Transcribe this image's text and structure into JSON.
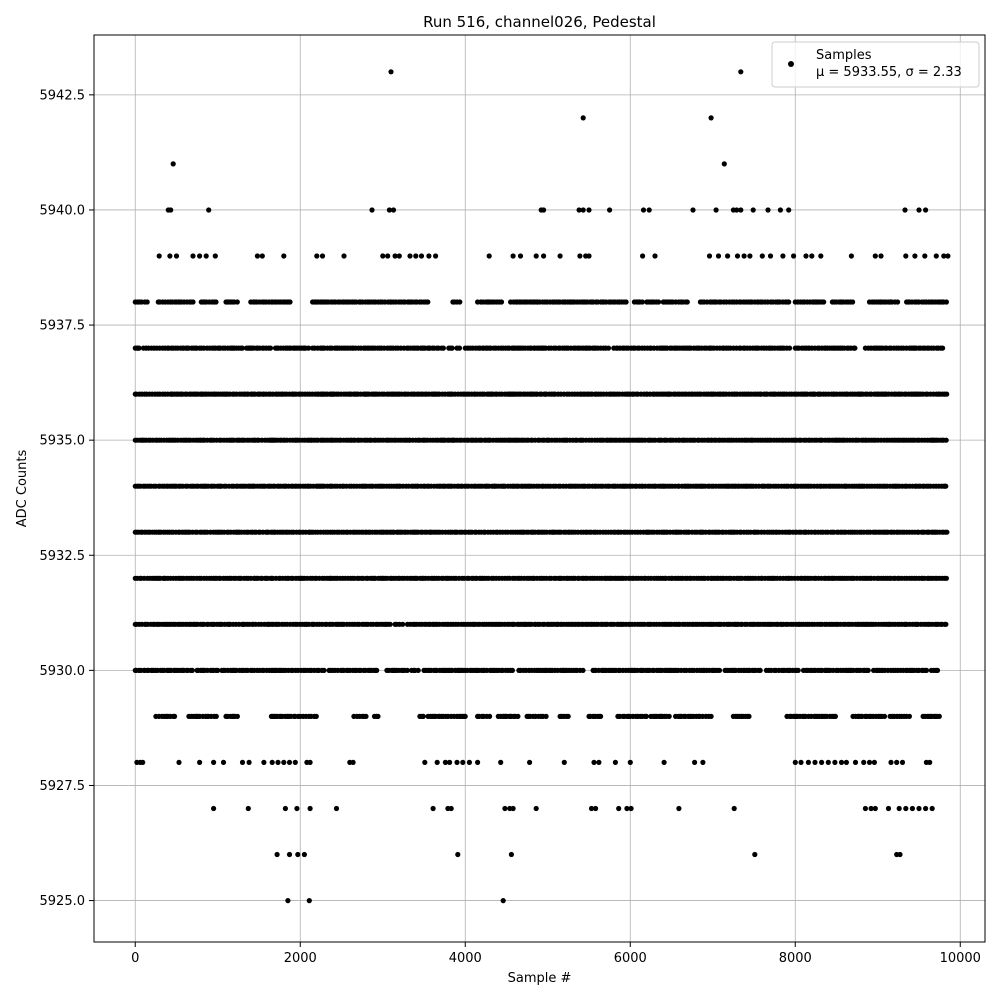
{
  "chart_data": {
    "type": "scatter",
    "title": "Run 516, channel026, Pedestal",
    "xlabel": "Sample #",
    "ylabel": "ADC Counts",
    "xlim": [
      -500,
      10300
    ],
    "ylim": [
      5924.1,
      5943.8
    ],
    "x_ticks": [
      0,
      2000,
      4000,
      6000,
      8000,
      10000
    ],
    "y_ticks": [
      5925.0,
      5927.5,
      5930.0,
      5932.5,
      5935.0,
      5937.5,
      5940.0,
      5942.5
    ],
    "grid": true,
    "legend": {
      "position": "top-right",
      "series_name": "Samples",
      "stats_text": "μ = 5933.55, σ = 2.33"
    },
    "marker_color": "#000000",
    "series": [
      {
        "name": "Samples",
        "points": [
          [
            3100,
            5943
          ],
          [
            7340,
            5943
          ],
          [
            5430,
            5942
          ],
          [
            6980,
            5942
          ],
          [
            460,
            5941
          ],
          [
            7140,
            5941
          ],
          [
            400,
            5940
          ],
          [
            430,
            5940
          ],
          [
            890,
            5940
          ],
          [
            2870,
            5940
          ],
          [
            3080,
            5940
          ],
          [
            3130,
            5940
          ],
          [
            4920,
            5940
          ],
          [
            4950,
            5940
          ],
          [
            5380,
            5940
          ],
          [
            5430,
            5940
          ],
          [
            5500,
            5940
          ],
          [
            5750,
            5940
          ],
          [
            6160,
            5940
          ],
          [
            6230,
            5940
          ],
          [
            6760,
            5940
          ],
          [
            7040,
            5940
          ],
          [
            7250,
            5940
          ],
          [
            7290,
            5940
          ],
          [
            7340,
            5940
          ],
          [
            7490,
            5940
          ],
          [
            7670,
            5940
          ],
          [
            7820,
            5940
          ],
          [
            7920,
            5940
          ],
          [
            9330,
            5940
          ],
          [
            9500,
            5940
          ],
          [
            9580,
            5940
          ],
          [
            290,
            5939
          ],
          [
            420,
            5939
          ],
          [
            500,
            5939
          ],
          [
            700,
            5939
          ],
          [
            780,
            5939
          ],
          [
            860,
            5939
          ],
          [
            970,
            5939
          ],
          [
            1480,
            5939
          ],
          [
            1540,
            5939
          ],
          [
            1800,
            5939
          ],
          [
            2200,
            5939
          ],
          [
            2270,
            5939
          ],
          [
            2530,
            5939
          ],
          [
            3000,
            5939
          ],
          [
            3060,
            5939
          ],
          [
            3150,
            5939
          ],
          [
            3200,
            5939
          ],
          [
            3330,
            5939
          ],
          [
            3400,
            5939
          ],
          [
            3470,
            5939
          ],
          [
            3560,
            5939
          ],
          [
            3640,
            5939
          ],
          [
            4290,
            5939
          ],
          [
            4580,
            5939
          ],
          [
            4670,
            5939
          ],
          [
            4860,
            5939
          ],
          [
            4950,
            5939
          ],
          [
            5150,
            5939
          ],
          [
            5390,
            5939
          ],
          [
            5460,
            5939
          ],
          [
            5500,
            5939
          ],
          [
            6150,
            5939
          ],
          [
            6300,
            5939
          ],
          [
            6960,
            5939
          ],
          [
            7070,
            5939
          ],
          [
            7180,
            5939
          ],
          [
            7300,
            5939
          ],
          [
            7380,
            5939
          ],
          [
            7450,
            5939
          ],
          [
            7600,
            5939
          ],
          [
            7700,
            5939
          ],
          [
            7850,
            5939
          ],
          [
            7980,
            5939
          ],
          [
            8130,
            5939
          ],
          [
            8200,
            5939
          ],
          [
            8310,
            5939
          ],
          [
            8680,
            5939
          ],
          [
            8970,
            5939
          ],
          [
            9040,
            5939
          ],
          [
            9340,
            5939
          ],
          [
            9450,
            5939
          ],
          [
            9570,
            5939
          ],
          [
            9710,
            5939
          ],
          [
            9800,
            5939
          ],
          [
            9850,
            5939
          ],
          [
            20,
            5928
          ],
          [
            60,
            5928
          ],
          [
            90,
            5928
          ],
          [
            530,
            5928
          ],
          [
            780,
            5928
          ],
          [
            950,
            5928
          ],
          [
            1070,
            5928
          ],
          [
            1300,
            5928
          ],
          [
            1380,
            5928
          ],
          [
            1560,
            5928
          ],
          [
            1660,
            5928
          ],
          [
            1730,
            5928
          ],
          [
            1800,
            5928
          ],
          [
            1870,
            5928
          ],
          [
            1940,
            5928
          ],
          [
            2080,
            5928
          ],
          [
            2120,
            5928
          ],
          [
            2600,
            5928
          ],
          [
            2640,
            5928
          ],
          [
            3510,
            5928
          ],
          [
            3660,
            5928
          ],
          [
            3760,
            5928
          ],
          [
            3810,
            5928
          ],
          [
            3900,
            5928
          ],
          [
            3970,
            5928
          ],
          [
            4050,
            5928
          ],
          [
            4150,
            5928
          ],
          [
            4430,
            5928
          ],
          [
            4780,
            5928
          ],
          [
            5200,
            5928
          ],
          [
            5560,
            5928
          ],
          [
            5620,
            5928
          ],
          [
            5820,
            5928
          ],
          [
            6000,
            5928
          ],
          [
            6410,
            5928
          ],
          [
            6780,
            5928
          ],
          [
            6880,
            5928
          ],
          [
            8000,
            5928
          ],
          [
            8070,
            5928
          ],
          [
            8160,
            5928
          ],
          [
            8240,
            5928
          ],
          [
            8320,
            5928
          ],
          [
            8400,
            5928
          ],
          [
            8480,
            5928
          ],
          [
            8560,
            5928
          ],
          [
            8620,
            5928
          ],
          [
            8730,
            5928
          ],
          [
            8830,
            5928
          ],
          [
            8900,
            5928
          ],
          [
            8960,
            5928
          ],
          [
            9160,
            5928
          ],
          [
            9230,
            5928
          ],
          [
            9300,
            5928
          ],
          [
            9590,
            5928
          ],
          [
            9630,
            5928
          ],
          [
            950,
            5927
          ],
          [
            1370,
            5927
          ],
          [
            1820,
            5927
          ],
          [
            1960,
            5927
          ],
          [
            2120,
            5927
          ],
          [
            2440,
            5927
          ],
          [
            3610,
            5927
          ],
          [
            3790,
            5927
          ],
          [
            3830,
            5927
          ],
          [
            4480,
            5927
          ],
          [
            4540,
            5927
          ],
          [
            4580,
            5927
          ],
          [
            4860,
            5927
          ],
          [
            5530,
            5927
          ],
          [
            5580,
            5927
          ],
          [
            5860,
            5927
          ],
          [
            5960,
            5927
          ],
          [
            6010,
            5927
          ],
          [
            6590,
            5927
          ],
          [
            7260,
            5927
          ],
          [
            8850,
            5927
          ],
          [
            8920,
            5927
          ],
          [
            8970,
            5927
          ],
          [
            9130,
            5927
          ],
          [
            9260,
            5927
          ],
          [
            9340,
            5927
          ],
          [
            9420,
            5927
          ],
          [
            9500,
            5927
          ],
          [
            9580,
            5927
          ],
          [
            9660,
            5927
          ],
          [
            1720,
            5926
          ],
          [
            1870,
            5926
          ],
          [
            1970,
            5926
          ],
          [
            2050,
            5926
          ],
          [
            3910,
            5926
          ],
          [
            4560,
            5926
          ],
          [
            7510,
            5926
          ],
          [
            9230,
            5926
          ],
          [
            9270,
            5926
          ],
          [
            1850,
            5925
          ],
          [
            2110,
            5925
          ],
          [
            4460,
            5925
          ]
        ]
      }
    ],
    "dense_bands": [
      {
        "y": 5938,
        "x_ranges": [
          [
            0,
            160
          ],
          [
            280,
            700
          ],
          [
            800,
            1000
          ],
          [
            1100,
            1250
          ],
          [
            1400,
            1900
          ],
          [
            2150,
            3550
          ],
          [
            3850,
            3950
          ],
          [
            4150,
            4450
          ],
          [
            4550,
            5950
          ],
          [
            6050,
            6150
          ],
          [
            6200,
            6350
          ],
          [
            6400,
            6700
          ],
          [
            6850,
            7950
          ],
          [
            8000,
            8350
          ],
          [
            8450,
            8700
          ],
          [
            8900,
            9250
          ],
          [
            9350,
            9850
          ]
        ]
      },
      {
        "y": 5937,
        "x_ranges": [
          [
            0,
            60
          ],
          [
            100,
            1300
          ],
          [
            1350,
            1650
          ],
          [
            1700,
            2100
          ],
          [
            2150,
            3750
          ],
          [
            3800,
            3850
          ],
          [
            3900,
            3950
          ],
          [
            4000,
            5750
          ],
          [
            5800,
            7950
          ],
          [
            8000,
            8750
          ],
          [
            8850,
            9800
          ]
        ]
      },
      {
        "y": 5936,
        "x_ranges": [
          [
            0,
            9850
          ]
        ]
      },
      {
        "y": 5935,
        "x_ranges": [
          [
            0,
            9850
          ]
        ]
      },
      {
        "y": 5934,
        "x_ranges": [
          [
            0,
            9850
          ]
        ]
      },
      {
        "y": 5933,
        "x_ranges": [
          [
            0,
            9850
          ]
        ]
      },
      {
        "y": 5932,
        "x_ranges": [
          [
            0,
            9850
          ]
        ]
      },
      {
        "y": 5931,
        "x_ranges": [
          [
            0,
            3100
          ],
          [
            3150,
            3250
          ],
          [
            3300,
            9850
          ]
        ]
      },
      {
        "y": 5930,
        "x_ranges": [
          [
            0,
            700
          ],
          [
            750,
            1000
          ],
          [
            1050,
            2300
          ],
          [
            2350,
            2950
          ],
          [
            3050,
            3300
          ],
          [
            3350,
            3450
          ],
          [
            3500,
            4600
          ],
          [
            4650,
            5450
          ],
          [
            5550,
            7100
          ],
          [
            7150,
            7600
          ],
          [
            7650,
            8050
          ],
          [
            8100,
            8900
          ],
          [
            8950,
            9600
          ],
          [
            9650,
            9750
          ]
        ]
      },
      {
        "y": 5929,
        "x_ranges": [
          [
            250,
            500
          ],
          [
            650,
            1000
          ],
          [
            1100,
            1250
          ],
          [
            1650,
            2200
          ],
          [
            2650,
            2800
          ],
          [
            2900,
            2950
          ],
          [
            3450,
            3500
          ],
          [
            3550,
            4000
          ],
          [
            4150,
            4300
          ],
          [
            4400,
            4650
          ],
          [
            4750,
            5000
          ],
          [
            5150,
            5250
          ],
          [
            5500,
            5650
          ],
          [
            5850,
            6200
          ],
          [
            6250,
            6500
          ],
          [
            6550,
            7000
          ],
          [
            7250,
            7450
          ],
          [
            7900,
            8500
          ],
          [
            8700,
            9100
          ],
          [
            9150,
            9400
          ],
          [
            9550,
            9750
          ]
        ]
      }
    ]
  }
}
